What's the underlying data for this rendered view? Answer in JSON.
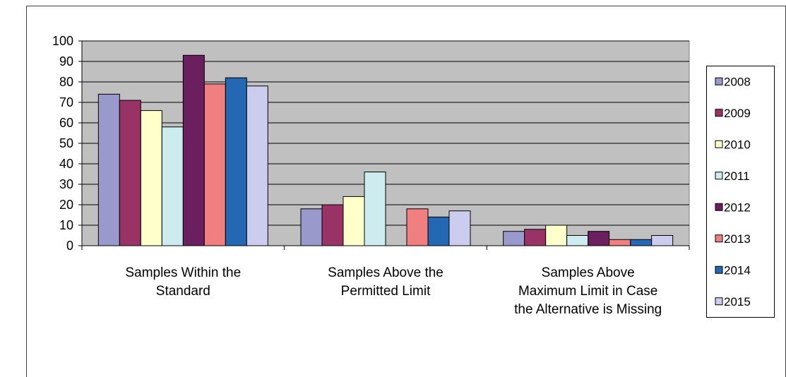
{
  "chart_data": {
    "type": "bar",
    "categories": [
      [
        "Samples Within the",
        "Standard"
      ],
      [
        "Samples Above the",
        "Permitted Limit"
      ],
      [
        "Samples Above",
        "Maximum Limit in Case",
        "the Alternative is Missing"
      ]
    ],
    "series": [
      {
        "name": "2008",
        "color": "#9999cc",
        "values": [
          74,
          18,
          7
        ]
      },
      {
        "name": "2009",
        "color": "#993366",
        "values": [
          71,
          20,
          8
        ]
      },
      {
        "name": "2010",
        "color": "#ffffcc",
        "values": [
          66,
          24,
          10
        ]
      },
      {
        "name": "2011",
        "color": "#ccecf0",
        "values": [
          58,
          36,
          5
        ]
      },
      {
        "name": "2012",
        "color": "#6b1f5f",
        "values": [
          93,
          null,
          7
        ]
      },
      {
        "name": "2013",
        "color": "#f08080",
        "values": [
          79,
          18,
          3
        ]
      },
      {
        "name": "2014",
        "color": "#2468b4",
        "values": [
          82,
          14,
          3
        ]
      },
      {
        "name": "2015",
        "color": "#ccccee",
        "values": [
          78,
          17,
          5
        ]
      }
    ],
    "yticks": [
      "0",
      "10",
      "20",
      "30",
      "40",
      "50",
      "60",
      "70",
      "80",
      "90",
      "100"
    ],
    "ylim": [
      0,
      100
    ],
    "grid": true,
    "legend_position": "right",
    "plot_background": "#c0c0c0"
  }
}
